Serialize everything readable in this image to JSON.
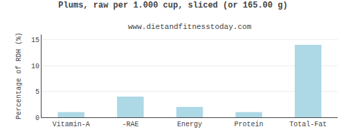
{
  "chart_data": {
    "type": "bar",
    "title": "Plums, raw per 1.000 cup, sliced (or 165.00 g)",
    "subtitle": "www.dietandfitnesstoday.com",
    "categories": [
      "Vitamin-A",
      "-RAE",
      "Energy",
      "Protein",
      "Total-Fat"
    ],
    "values": [
      1.0,
      4.0,
      2.0,
      1.0,
      14.0
    ],
    "color": "#add8e6",
    "ylabel": "Percentage of RDH (%)",
    "ylim": [
      0,
      16
    ],
    "yticks": [
      0,
      5,
      10,
      15
    ],
    "grid": true
  }
}
